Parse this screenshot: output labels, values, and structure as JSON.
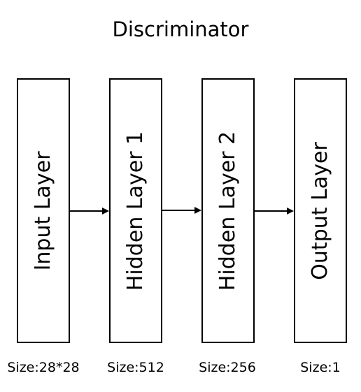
{
  "title": "Discriminator",
  "layers": [
    {
      "label": "Input Layer",
      "size": "Size:28*28"
    },
    {
      "label": "Hidden Layer 1",
      "size": "Size:512"
    },
    {
      "label": "Hidden Layer 2",
      "size": "Size:256"
    },
    {
      "label": "Output Layer",
      "size": "Size:1"
    }
  ],
  "colors": {
    "stroke": "#000000",
    "background": "#ffffff"
  }
}
